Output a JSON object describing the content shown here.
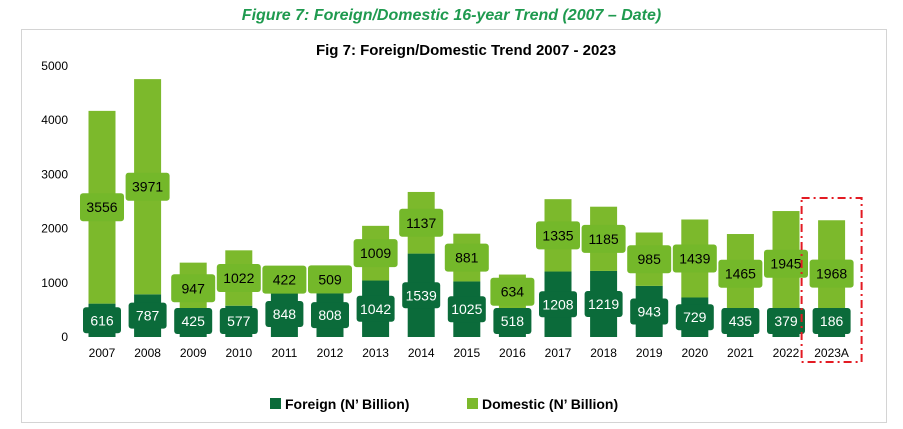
{
  "figure_caption": "Figure 7: Foreign/Domestic 16-year Trend (2007 – Date)",
  "colors": {
    "foreign": "#0b6b3a",
    "domestic": "#7cb92c",
    "caption": "#1f9a4f",
    "highlight": "#e31b23",
    "label_box_domestic": "#74b82a",
    "label_box_foreign": "#0b6b3a"
  },
  "chart_data": {
    "type": "bar",
    "stacked": true,
    "title": "Fig 7: Foreign/Domestic Trend 2007 - 2023",
    "categories": [
      "2007",
      "2008",
      "2009",
      "2010",
      "2011",
      "2012",
      "2013",
      "2014",
      "2015",
      "2016",
      "2017",
      "2018",
      "2019",
      "2020",
      "2021",
      "2022",
      "2023A"
    ],
    "series": [
      {
        "name": "Foreign (N’ Billion)",
        "values": [
          616,
          787,
          425,
          577,
          848,
          808,
          1042,
          1539,
          1025,
          518,
          1208,
          1219,
          943,
          729,
          435,
          379,
          186
        ]
      },
      {
        "name": "Domestic (N’ Billion)",
        "values": [
          3556,
          3971,
          947,
          1022,
          422,
          509,
          1009,
          1137,
          881,
          634,
          1335,
          1185,
          985,
          1439,
          1465,
          1945,
          1968
        ]
      }
    ],
    "y_ticks": [
      "0",
      "1000",
      "2000",
      "3000",
      "4000",
      "5000"
    ],
    "ylim": [
      0,
      5000
    ],
    "grid": false,
    "legend_position": "bottom",
    "highlighted_category": "2023A"
  }
}
